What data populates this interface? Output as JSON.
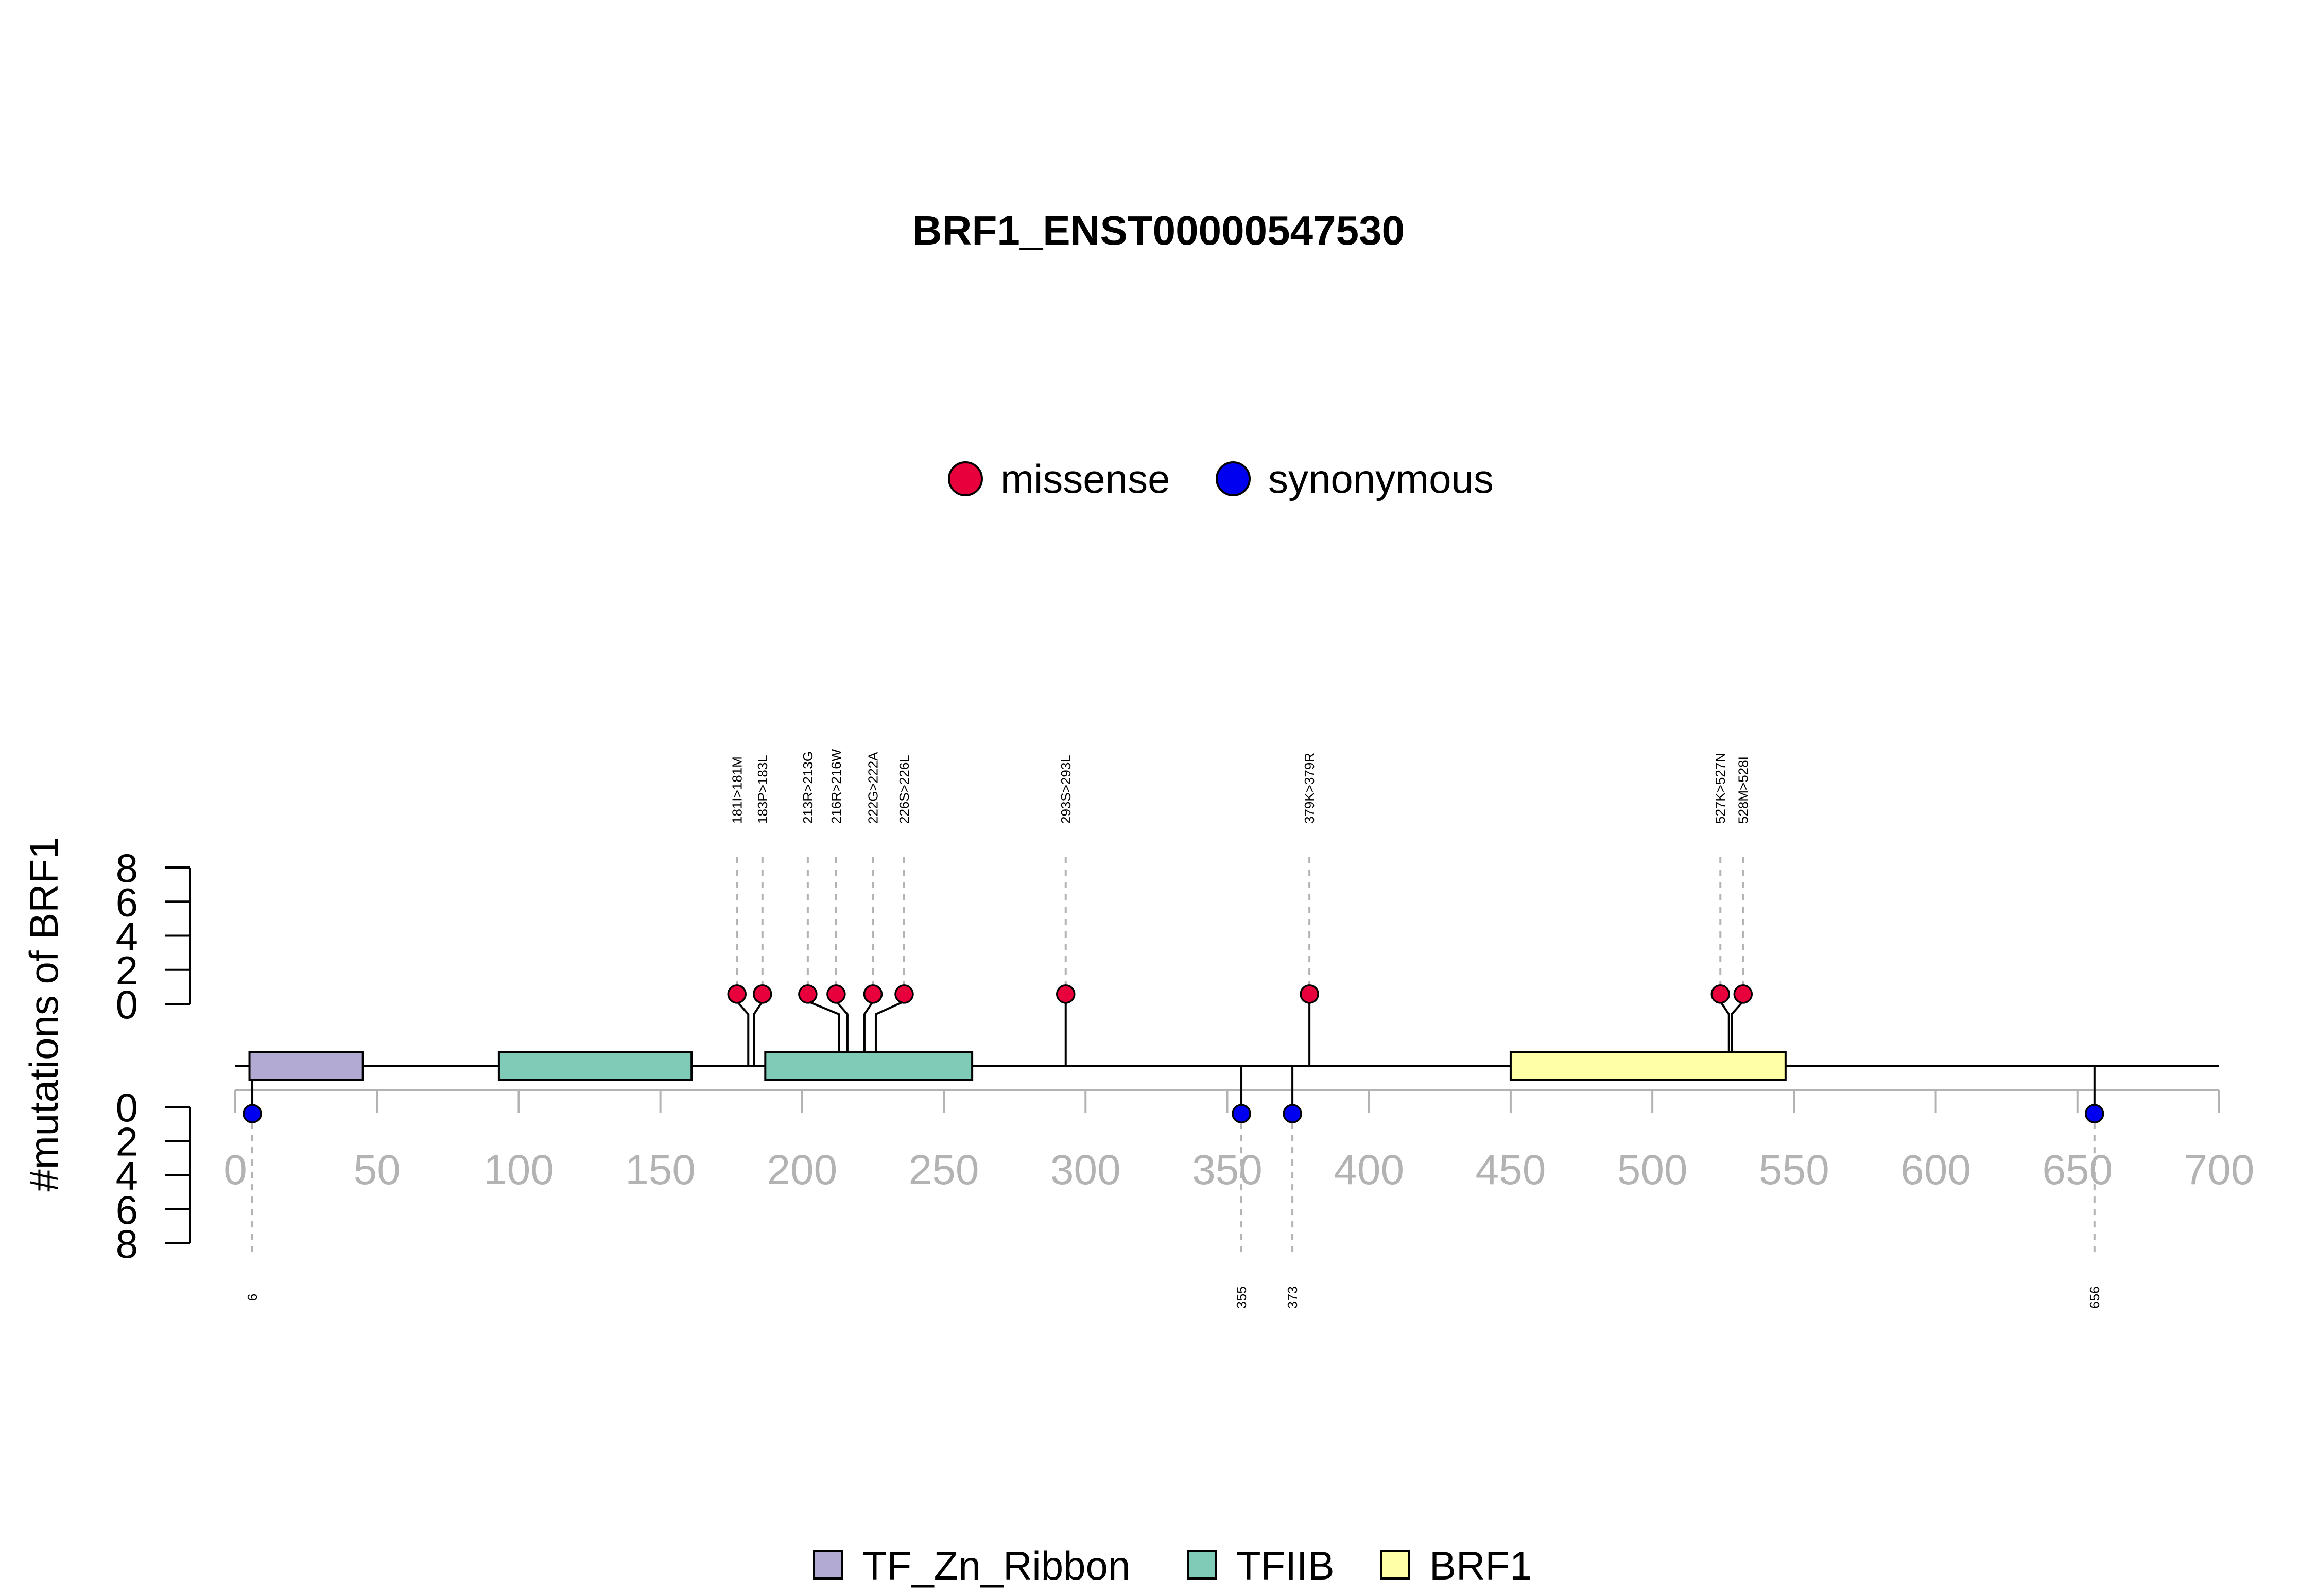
{
  "chart_data": {
    "type": "lollipop",
    "title": "BRF1_ENST00000547530",
    "ylabel": "#mutations of BRF1",
    "xlim": [
      0,
      700
    ],
    "x_ticks": [
      0,
      50,
      100,
      150,
      200,
      250,
      300,
      350,
      400,
      450,
      500,
      550,
      600,
      650,
      700
    ],
    "y_ticks": [
      0,
      2,
      4,
      6,
      8
    ],
    "ylim": [
      0,
      8
    ],
    "legend_top": [
      {
        "name": "missense",
        "color": "#E8003C"
      },
      {
        "name": "synonymous",
        "color": "#0000F0"
      }
    ],
    "legend_bottom": [
      {
        "name": "TF_Zn_Ribbon",
        "color": "#B2AAD2"
      },
      {
        "name": "TFIIB",
        "color": "#7FCBB7"
      },
      {
        "name": "BRF1",
        "color": "#FFFFA8"
      }
    ],
    "domains": [
      {
        "name": "TF_Zn_Ribbon",
        "start": 5,
        "end": 45
      },
      {
        "name": "TFIIB",
        "start": 93,
        "end": 161
      },
      {
        "name": "TFIIB",
        "start": 187,
        "end": 260
      },
      {
        "name": "BRF1",
        "start": 450,
        "end": 547
      }
    ],
    "mutations_above": [
      {
        "label": "181I>181M",
        "pos": 181,
        "display_pos": 177,
        "count": 1,
        "type": "missense"
      },
      {
        "label": "183P>183L",
        "pos": 183,
        "display_pos": 186,
        "count": 1,
        "type": "missense"
      },
      {
        "label": "213R>213G",
        "pos": 213,
        "display_pos": 202,
        "count": 1,
        "type": "missense"
      },
      {
        "label": "216R>216W",
        "pos": 216,
        "display_pos": 212,
        "count": 1,
        "type": "missense"
      },
      {
        "label": "222G>222A",
        "pos": 222,
        "display_pos": 225,
        "count": 1,
        "type": "missense"
      },
      {
        "label": "226S>226L",
        "pos": 226,
        "display_pos": 236,
        "count": 1,
        "type": "missense"
      },
      {
        "label": "293S>293L",
        "pos": 293,
        "display_pos": 293,
        "count": 1,
        "type": "missense"
      },
      {
        "label": "379K>379R",
        "pos": 379,
        "display_pos": 379,
        "count": 1,
        "type": "missense"
      },
      {
        "label": "527K>527N",
        "pos": 527,
        "display_pos": 524,
        "count": 1,
        "type": "missense"
      },
      {
        "label": "528M>528I",
        "pos": 528,
        "display_pos": 532,
        "count": 1,
        "type": "missense"
      }
    ],
    "mutations_below": [
      {
        "label": "6",
        "pos": 6,
        "count": 1,
        "type": "synonymous"
      },
      {
        "label": "355",
        "pos": 355,
        "count": 1,
        "type": "synonymous"
      },
      {
        "label": "373",
        "pos": 373,
        "count": 1,
        "type": "synonymous"
      },
      {
        "label": "656",
        "pos": 656,
        "count": 1,
        "type": "synonymous"
      }
    ]
  }
}
